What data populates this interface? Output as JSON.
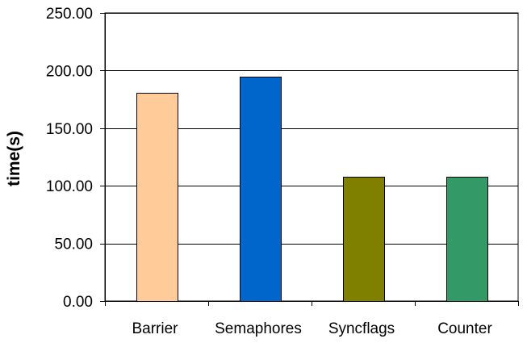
{
  "chart_data": {
    "type": "bar",
    "title": "",
    "xlabel": "",
    "ylabel": "time(s)",
    "ylim": [
      0,
      250
    ],
    "y_ticks": [
      0,
      50,
      100,
      150,
      200,
      250
    ],
    "y_tick_labels": [
      "0.00",
      "50.00",
      "100.00",
      "150.00",
      "200.00",
      "250.00"
    ],
    "categories": [
      "Barrier",
      "Semaphores",
      "Syncflags",
      "Counter"
    ],
    "values": [
      181,
      195,
      108,
      108
    ],
    "colors": [
      "#FFCC99",
      "#0066CC",
      "#808000",
      "#339966"
    ],
    "grid": true,
    "legend": "none"
  }
}
